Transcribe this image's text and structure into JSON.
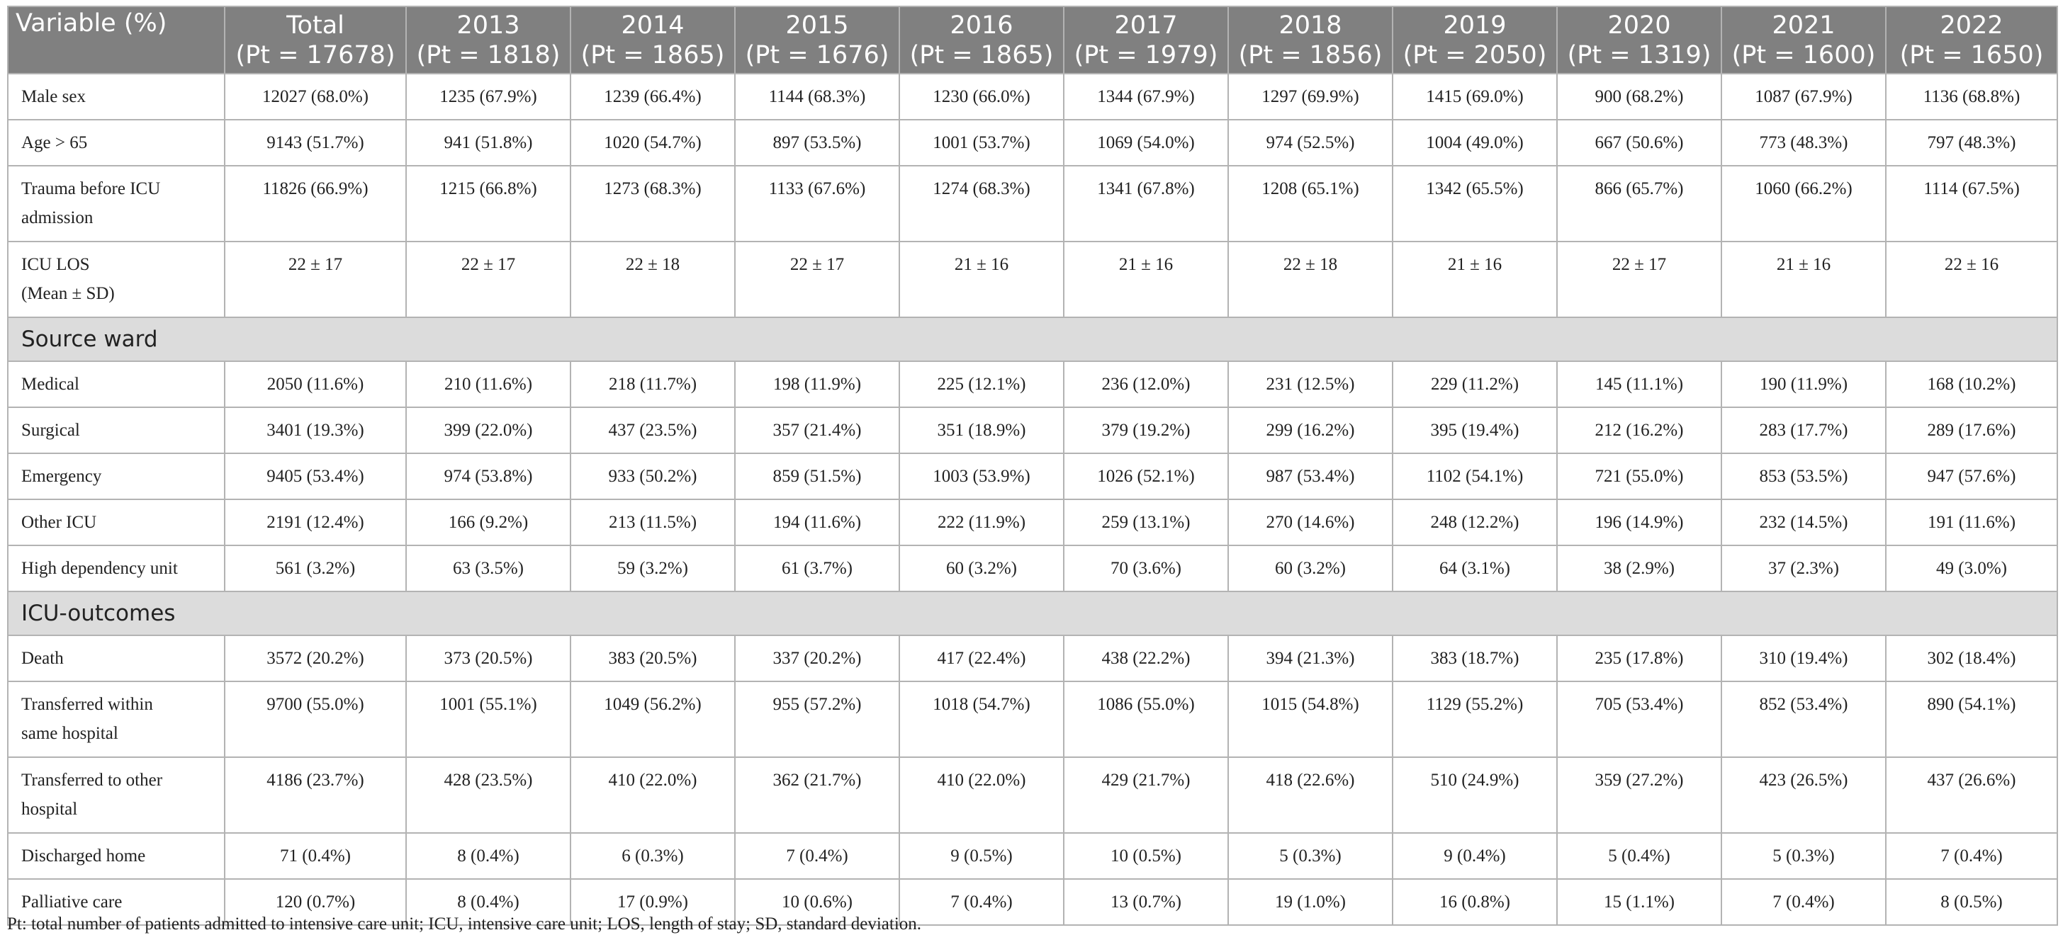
{
  "header": [
    {
      "line1": "Variable (%)",
      "line2": ""
    },
    {
      "line1": "Total",
      "line2": "(Pt = 17678)"
    },
    {
      "line1": "2013",
      "line2": "(Pt = 1818)"
    },
    {
      "line1": "2014",
      "line2": "(Pt = 1865)"
    },
    {
      "line1": "2015",
      "line2": "(Pt = 1676)"
    },
    {
      "line1": "2016",
      "line2": "(Pt = 1865)"
    },
    {
      "line1": "2017",
      "line2": "(Pt = 1979)"
    },
    {
      "line1": "2018",
      "line2": "(Pt = 1856)"
    },
    {
      "line1": "2019",
      "line2": "(Pt = 2050)"
    },
    {
      "line1": "2020",
      "line2": "(Pt = 1319)"
    },
    {
      "line1": "2021",
      "line2": "(Pt = 1600)"
    },
    {
      "line1": "2022",
      "line2": "(Pt = 1650)"
    }
  ],
  "rows": [
    {
      "type": "data",
      "label": [
        "Male sex"
      ],
      "cells": [
        "12027 (68.0%)",
        "1235 (67.9%)",
        "1239 (66.4%)",
        "1144 (68.3%)",
        "1230 (66.0%)",
        "1344 (67.9%)",
        "1297 (69.9%)",
        "1415 (69.0%)",
        "900 (68.2%)",
        "1087 (67.9%)",
        "1136 (68.8%)"
      ]
    },
    {
      "type": "data",
      "label": [
        "Age > 65"
      ],
      "cells": [
        "9143 (51.7%)",
        "941 (51.8%)",
        "1020 (54.7%)",
        "897 (53.5%)",
        "1001 (53.7%)",
        "1069 (54.0%)",
        "974 (52.5%)",
        "1004 (49.0%)",
        "667 (50.6%)",
        "773 (48.3%)",
        "797 (48.3%)"
      ]
    },
    {
      "type": "data",
      "label": [
        "Trauma before ICU",
        "admission"
      ],
      "cells": [
        "11826 (66.9%)",
        "1215 (66.8%)",
        "1273 (68.3%)",
        "1133 (67.6%)",
        "1274 (68.3%)",
        "1341 (67.8%)",
        "1208 (65.1%)",
        "1342 (65.5%)",
        "866 (65.7%)",
        "1060 (66.2%)",
        "1114 (67.5%)"
      ]
    },
    {
      "type": "data",
      "label": [
        "ICU LOS",
        "(Mean ± SD)"
      ],
      "cells": [
        "22 ± 17",
        "22 ± 17",
        "22 ± 18",
        "22 ± 17",
        "21 ± 16",
        "21 ± 16",
        "22 ± 18",
        "21 ± 16",
        "22 ± 17",
        "21 ± 16",
        "22 ± 16"
      ]
    },
    {
      "type": "section",
      "label": [
        "Source ward"
      ]
    },
    {
      "type": "data",
      "label": [
        "Medical"
      ],
      "cells": [
        "2050 (11.6%)",
        "210 (11.6%)",
        "218 (11.7%)",
        "198 (11.9%)",
        "225 (12.1%)",
        "236 (12.0%)",
        "231 (12.5%)",
        "229 (11.2%)",
        "145 (11.1%)",
        "190 (11.9%)",
        "168 (10.2%)"
      ]
    },
    {
      "type": "data",
      "label": [
        "Surgical"
      ],
      "cells": [
        "3401 (19.3%)",
        "399 (22.0%)",
        "437 (23.5%)",
        "357 (21.4%)",
        "351 (18.9%)",
        "379 (19.2%)",
        "299 (16.2%)",
        "395 (19.4%)",
        "212 (16.2%)",
        "283 (17.7%)",
        "289 (17.6%)"
      ]
    },
    {
      "type": "data",
      "label": [
        "Emergency"
      ],
      "cells": [
        "9405 (53.4%)",
        "974 (53.8%)",
        "933 (50.2%)",
        "859 (51.5%)",
        "1003 (53.9%)",
        "1026 (52.1%)",
        "987 (53.4%)",
        "1102 (54.1%)",
        "721 (55.0%)",
        "853 (53.5%)",
        "947 (57.6%)"
      ]
    },
    {
      "type": "data",
      "label": [
        "Other ICU"
      ],
      "cells": [
        "2191 (12.4%)",
        "166 (9.2%)",
        "213 (11.5%)",
        "194 (11.6%)",
        "222 (11.9%)",
        "259 (13.1%)",
        "270 (14.6%)",
        "248 (12.2%)",
        "196 (14.9%)",
        "232 (14.5%)",
        "191 (11.6%)"
      ]
    },
    {
      "type": "data",
      "label": [
        "High dependency unit"
      ],
      "cells": [
        "561 (3.2%)",
        "63 (3.5%)",
        "59 (3.2%)",
        "61 (3.7%)",
        "60 (3.2%)",
        "70 (3.6%)",
        "60 (3.2%)",
        "64 (3.1%)",
        "38 (2.9%)",
        "37 (2.3%)",
        "49 (3.0%)"
      ]
    },
    {
      "type": "section",
      "label": [
        "ICU-outcomes"
      ]
    },
    {
      "type": "data",
      "label": [
        "Death"
      ],
      "cells": [
        "3572 (20.2%)",
        "373 (20.5%)",
        "383 (20.5%)",
        "337 (20.2%)",
        "417 (22.4%)",
        "438 (22.2%)",
        "394 (21.3%)",
        "383 (18.7%)",
        "235 (17.8%)",
        "310 (19.4%)",
        "302 (18.4%)"
      ]
    },
    {
      "type": "data",
      "label": [
        "Transferred within",
        "same hospital"
      ],
      "cells": [
        "9700 (55.0%)",
        "1001 (55.1%)",
        "1049 (56.2%)",
        "955 (57.2%)",
        "1018 (54.7%)",
        "1086 (55.0%)",
        "1015 (54.8%)",
        "1129 (55.2%)",
        "705 (53.4%)",
        "852 (53.4%)",
        "890 (54.1%)"
      ]
    },
    {
      "type": "data",
      "label": [
        "Transferred to other",
        "hospital"
      ],
      "cells": [
        "4186 (23.7%)",
        "428 (23.5%)",
        "410 (22.0%)",
        "362 (21.7%)",
        "410 (22.0%)",
        "429 (21.7%)",
        "418 (22.6%)",
        "510 (24.9%)",
        "359 (27.2%)",
        "423 (26.5%)",
        "437 (26.6%)"
      ]
    },
    {
      "type": "data",
      "label": [
        "Discharged home"
      ],
      "cells": [
        "71 (0.4%)",
        "8 (0.4%)",
        "6 (0.3%)",
        "7 (0.4%)",
        "9 (0.5%)",
        "10 (0.5%)",
        "5 (0.3%)",
        "9 (0.4%)",
        "5 (0.4%)",
        "5 (0.3%)",
        "7 (0.4%)"
      ]
    },
    {
      "type": "data",
      "label": [
        "Palliative care"
      ],
      "cells": [
        "120 (0.7%)",
        "8 (0.4%)",
        "17 (0.9%)",
        "10 (0.6%)",
        "7 (0.4%)",
        "13 (0.7%)",
        "19 (1.0%)",
        "16 (0.8%)",
        "15 (1.1%)",
        "7 (0.4%)",
        "8 (0.5%)"
      ]
    }
  ],
  "footnote": "Pt: total number of patients admitted to intensive care unit; ICU, intensive care unit; LOS, length of stay; SD, standard deviation."
}
